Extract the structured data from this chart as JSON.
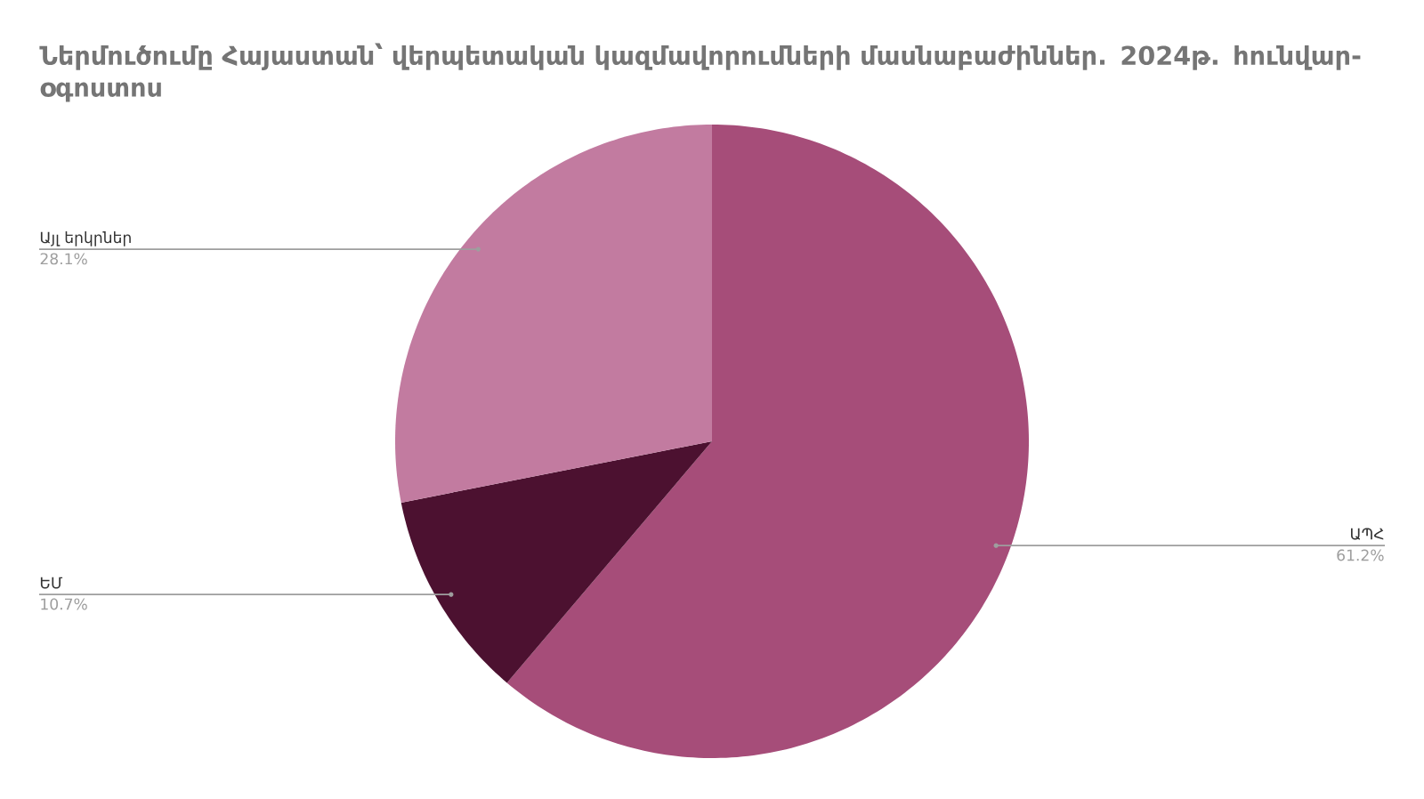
{
  "chart_data": {
    "type": "pie",
    "title": "Ներմուծումը Հայաստան՝ վերպետական կազմավորումների մասնաբաժիններ. 2024թ. հունվար-օգոստոս",
    "categories": [
      "ԱՊՀ",
      "ԵՄ",
      "Այլ երկրներ"
    ],
    "values": [
      61.2,
      10.7,
      28.1
    ],
    "colors": [
      "#a64d79",
      "#4c1130",
      "#c27ba0"
    ],
    "value_labels": [
      "61.2%",
      "10.7%",
      "28.1%"
    ]
  }
}
